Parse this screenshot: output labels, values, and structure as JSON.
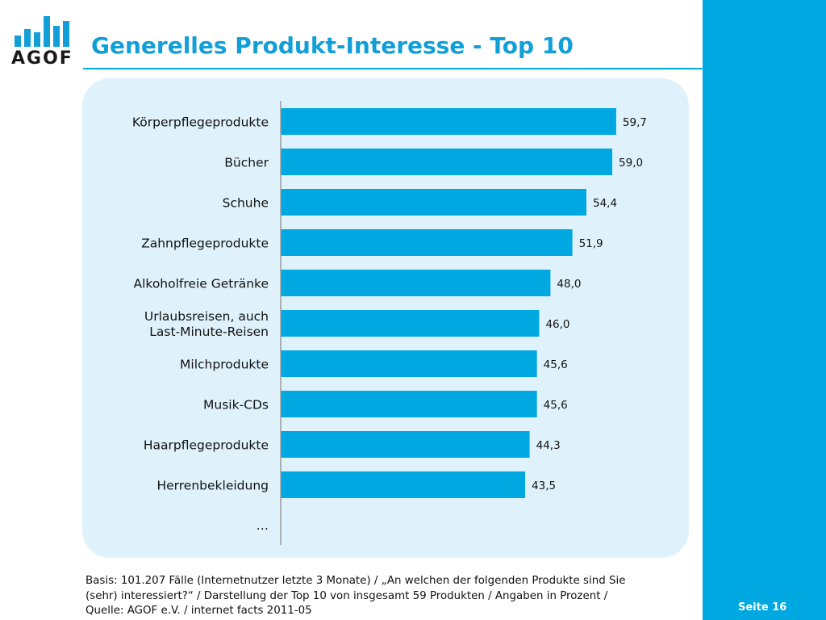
{
  "header": {
    "logo_text": "AGOF",
    "title": "Generelles Produkt-Interesse - Top 10"
  },
  "chart_data": {
    "type": "bar",
    "orientation": "horizontal",
    "title": "",
    "xlabel": "",
    "ylabel": "",
    "xlim": [
      0,
      60
    ],
    "grid": false,
    "bar_color": "#00a8e2",
    "categories": [
      [
        "Körperpflegeprodukte"
      ],
      [
        "Bücher"
      ],
      [
        "Schuhe"
      ],
      [
        "Zahnpflegeprodukte"
      ],
      [
        "Alkoholfreie Getränke"
      ],
      [
        "Urlaubsreisen, auch",
        "Last-Minute-Reisen"
      ],
      [
        "Milchprodukte"
      ],
      [
        "Musik-CDs"
      ],
      [
        "Haarpflegeprodukte"
      ],
      [
        "Herrenbekleidung"
      ]
    ],
    "values": [
      59.7,
      59.0,
      54.4,
      51.9,
      48.0,
      46.0,
      45.6,
      45.6,
      44.3,
      43.5
    ],
    "value_labels": [
      "59,7",
      "59,0",
      "54,4",
      "51,9",
      "48,0",
      "46,0",
      "45,6",
      "45,6",
      "44,3",
      "43,5"
    ],
    "trailing_category": "…"
  },
  "footer": {
    "basis_lines": [
      "Basis: 101.207 Fälle (Internetnutzer letzte 3 Monate) / „An welchen der folgenden Produkte sind Sie",
      "(sehr) interessiert?“ / Darstellung der Top 10 von insgesamt 59 Produkten / Angaben in Prozent /",
      "Quelle: AGOF e.V. / internet facts 2011-05"
    ],
    "page_number": "Seite 16"
  },
  "colors": {
    "accent": "#00a8e2",
    "title": "#129fd8",
    "panel": "#dff2fc"
  }
}
